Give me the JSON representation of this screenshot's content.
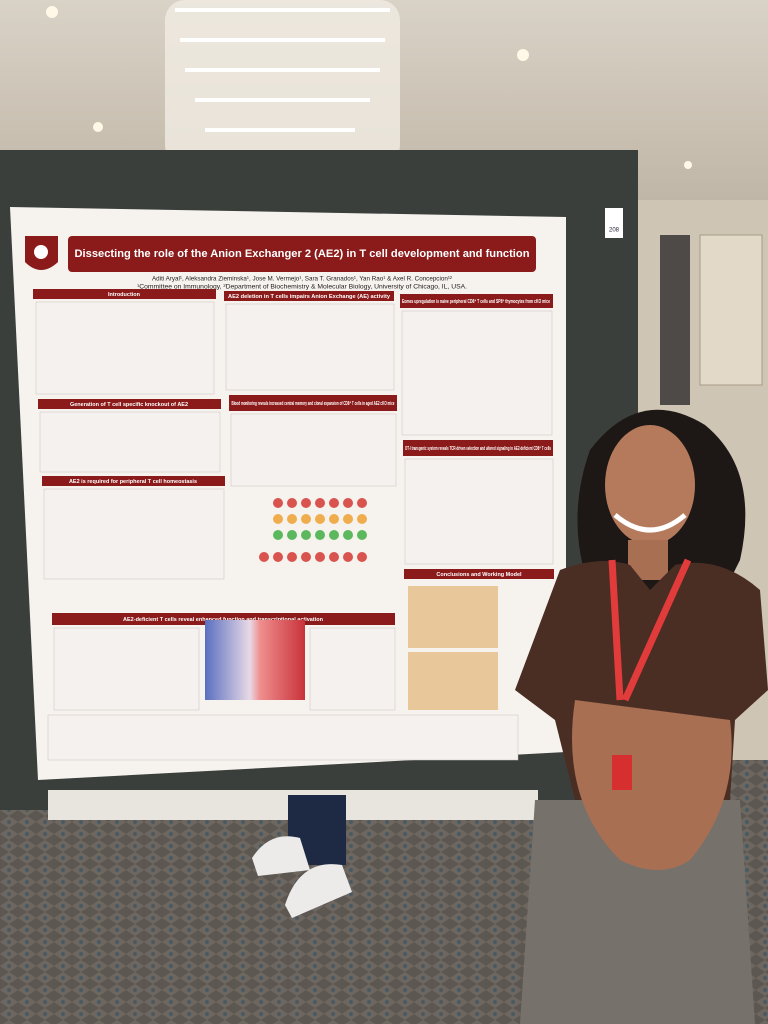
{
  "poster": {
    "booth": "208",
    "title": "Dissecting the role of the Anion Exchanger 2 (AE2) in T cell development and function",
    "authors": "Aditi Aryal¹, Aleksandra Zieminska¹, Jose M. Vermejo¹, Sara T. Granados¹, Yan Rao¹ & Axel R. Concepcion¹²",
    "affiliation": "¹Committee on Immunology, ²Department of Biochemistry & Molecular Biology, University of Chicago, IL, USA.",
    "sections": [
      "Introduction",
      "AE2 deletion in T cells impairs Anion Exchange (AE) activity",
      "Eomes upregulation is naive peripheral CD8⁺ T cells and SP8⁺ thymocytes from cKO mice",
      "Generation of T cell specific knockout of AE2",
      "Blood monitoring reveals increased central memory and clonal expansion of CD8⁺ T cells in aged AE2 cKO mice",
      "AE2 is required for peripheral T cell homeostasis",
      "OT-I transgenic system reveals TCR-driven selection and altered signaling in AE2-deficient CD8⁺ T cells",
      "Conclusions and Working Model",
      "AE2-deficient T cells reveal enhanced function and transcriptional activation"
    ]
  }
}
